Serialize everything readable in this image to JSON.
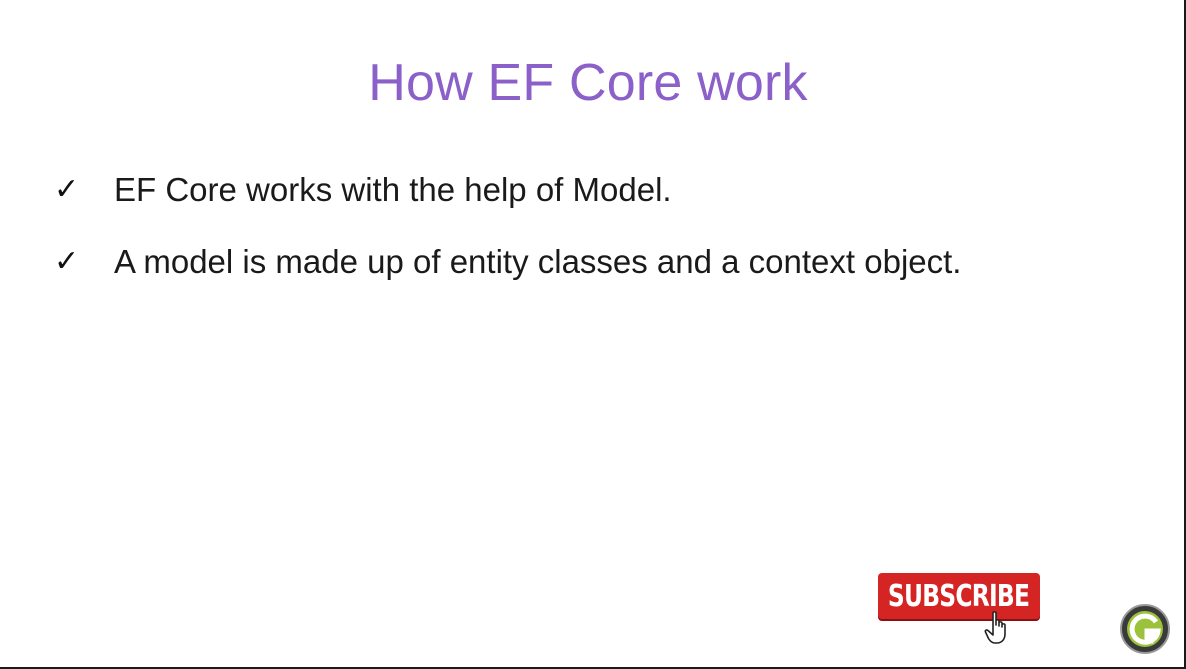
{
  "slide": {
    "title": "How EF Core work",
    "bullets": [
      {
        "marker": "✓",
        "text": "EF Core works with the help of Model."
      },
      {
        "marker": "✓",
        "text": "A model is made up of entity classes and a context object."
      }
    ]
  },
  "subscribe_button": {
    "label": "SUBSCRIBE",
    "color": "#d42424"
  },
  "icons": {
    "cursor": "hand-pointer-icon",
    "logo": "channel-logo-icon"
  },
  "colors": {
    "title": "#8b60c9",
    "text": "#1a1a1a"
  }
}
